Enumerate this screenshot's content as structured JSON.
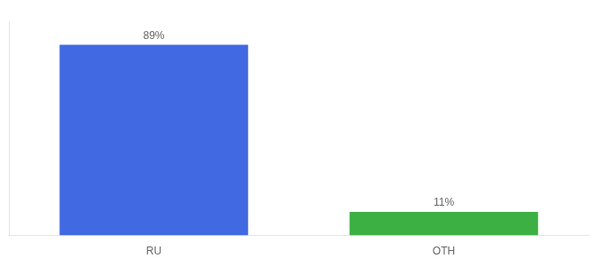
{
  "chart_data": {
    "type": "bar",
    "categories": [
      "RU",
      "OTH"
    ],
    "values": [
      89,
      11
    ],
    "value_labels": [
      "89%",
      "11%"
    ],
    "colors": [
      "#4169e1",
      "#3cb043"
    ],
    "ylim": [
      0,
      100
    ],
    "grid": false,
    "data_labels": true,
    "tick_labels": "x"
  }
}
